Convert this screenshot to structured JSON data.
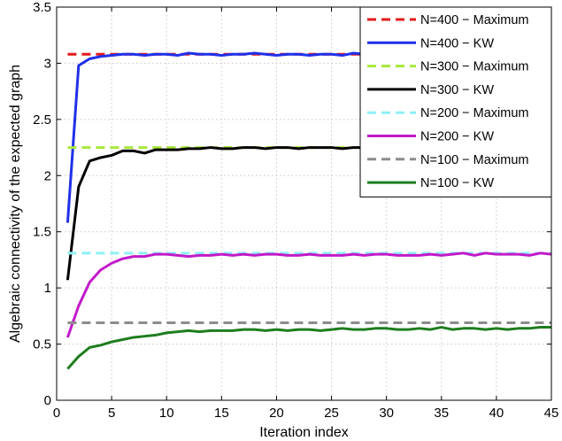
{
  "chart_data": {
    "type": "line",
    "xlabel": "Iteration index",
    "ylabel": "Algebraic connectivity of the expected graph",
    "xlim": [
      0,
      45
    ],
    "ylim": [
      0,
      3.5
    ],
    "x_ticks": [
      0,
      5,
      10,
      15,
      20,
      25,
      30,
      35,
      40,
      45
    ],
    "y_ticks": [
      0,
      0.5,
      1,
      1.5,
      2,
      2.5,
      3,
      3.5
    ],
    "grid": true,
    "legend_position": "top-right",
    "x": [
      1,
      2,
      3,
      4,
      5,
      6,
      7,
      8,
      9,
      10,
      11,
      12,
      13,
      14,
      15,
      16,
      17,
      18,
      19,
      20,
      21,
      22,
      23,
      24,
      25,
      26,
      27,
      28,
      29,
      30,
      31,
      32,
      33,
      34,
      35,
      36,
      37,
      38,
      39,
      40,
      41,
      42,
      43,
      44,
      45
    ],
    "series": [
      {
        "name": "N=400 − Maximum",
        "color": "#e41a1c",
        "dashed": true,
        "values": [
          3.08,
          3.08,
          3.08,
          3.08,
          3.08,
          3.08,
          3.08,
          3.08,
          3.08,
          3.08,
          3.08,
          3.08,
          3.08,
          3.08,
          3.08,
          3.08,
          3.08,
          3.08,
          3.08,
          3.08,
          3.08,
          3.08,
          3.08,
          3.08,
          3.08,
          3.08,
          3.08,
          3.08,
          3.08,
          3.08,
          3.08,
          3.08,
          3.08,
          3.08,
          3.08,
          3.08,
          3.08,
          3.08,
          3.08,
          3.08,
          3.08,
          3.08,
          3.08,
          3.08,
          3.08
        ]
      },
      {
        "name": "N=400 − KW",
        "color": "#1f30e8",
        "dashed": false,
        "values": [
          1.58,
          2.98,
          3.04,
          3.06,
          3.07,
          3.08,
          3.08,
          3.07,
          3.08,
          3.08,
          3.07,
          3.09,
          3.08,
          3.08,
          3.07,
          3.08,
          3.08,
          3.09,
          3.08,
          3.07,
          3.08,
          3.08,
          3.07,
          3.08,
          3.08,
          3.07,
          3.09,
          3.08,
          3.08,
          3.08,
          3.07,
          3.08,
          3.08,
          3.08,
          3.08,
          3.07,
          3.09,
          3.08,
          3.08,
          3.08,
          3.08,
          3.07,
          3.08,
          3.09,
          3.08
        ]
      },
      {
        "name": "N=300 − Maximum",
        "color": "#a8e83a",
        "dashed": true,
        "values": [
          2.25,
          2.25,
          2.25,
          2.25,
          2.25,
          2.25,
          2.25,
          2.25,
          2.25,
          2.25,
          2.25,
          2.25,
          2.25,
          2.25,
          2.25,
          2.25,
          2.25,
          2.25,
          2.25,
          2.25,
          2.25,
          2.25,
          2.25,
          2.25,
          2.25,
          2.25,
          2.25,
          2.25,
          2.25,
          2.25,
          2.25,
          2.25,
          2.25,
          2.25,
          2.25,
          2.25,
          2.25,
          2.25,
          2.25,
          2.25,
          2.25,
          2.25,
          2.25,
          2.25,
          2.25
        ]
      },
      {
        "name": "N=300 − KW",
        "color": "#000000",
        "dashed": false,
        "values": [
          1.07,
          1.9,
          2.13,
          2.16,
          2.18,
          2.22,
          2.22,
          2.2,
          2.23,
          2.23,
          2.23,
          2.24,
          2.24,
          2.25,
          2.24,
          2.24,
          2.25,
          2.25,
          2.24,
          2.25,
          2.25,
          2.24,
          2.25,
          2.25,
          2.25,
          2.24,
          2.25,
          2.25,
          2.25,
          2.25,
          2.25,
          2.25,
          2.25,
          2.25,
          2.25,
          2.25,
          2.25,
          2.25,
          2.25,
          2.25,
          2.25,
          2.25,
          2.25,
          2.25,
          2.25
        ]
      },
      {
        "name": "N=200 − Maximum",
        "color": "#8ef0f5",
        "dashed": true,
        "values": [
          1.31,
          1.31,
          1.31,
          1.31,
          1.31,
          1.31,
          1.31,
          1.31,
          1.31,
          1.31,
          1.31,
          1.31,
          1.31,
          1.31,
          1.31,
          1.31,
          1.31,
          1.31,
          1.31,
          1.31,
          1.31,
          1.31,
          1.31,
          1.31,
          1.31,
          1.31,
          1.31,
          1.31,
          1.31,
          1.31,
          1.31,
          1.31,
          1.31,
          1.31,
          1.31,
          1.31,
          1.31,
          1.31,
          1.31,
          1.31,
          1.31,
          1.31,
          1.31,
          1.31,
          1.31
        ]
      },
      {
        "name": "N=200 − KW",
        "color": "#c21ac9",
        "dashed": false,
        "values": [
          0.56,
          0.84,
          1.05,
          1.16,
          1.22,
          1.26,
          1.28,
          1.28,
          1.3,
          1.3,
          1.29,
          1.28,
          1.29,
          1.29,
          1.3,
          1.29,
          1.3,
          1.29,
          1.3,
          1.3,
          1.29,
          1.29,
          1.3,
          1.29,
          1.29,
          1.29,
          1.3,
          1.29,
          1.3,
          1.3,
          1.29,
          1.29,
          1.29,
          1.3,
          1.29,
          1.3,
          1.31,
          1.29,
          1.31,
          1.3,
          1.3,
          1.3,
          1.29,
          1.31,
          1.3
        ]
      },
      {
        "name": "N=100 − Maximum",
        "color": "#8c8c8c",
        "dashed": true,
        "values": [
          0.69,
          0.69,
          0.69,
          0.69,
          0.69,
          0.69,
          0.69,
          0.69,
          0.69,
          0.69,
          0.69,
          0.69,
          0.69,
          0.69,
          0.69,
          0.69,
          0.69,
          0.69,
          0.69,
          0.69,
          0.69,
          0.69,
          0.69,
          0.69,
          0.69,
          0.69,
          0.69,
          0.69,
          0.69,
          0.69,
          0.69,
          0.69,
          0.69,
          0.69,
          0.69,
          0.69,
          0.69,
          0.69,
          0.69,
          0.69,
          0.69,
          0.69,
          0.69,
          0.69,
          0.69
        ]
      },
      {
        "name": "N=100 − KW",
        "color": "#1e7d1e",
        "dashed": false,
        "values": [
          0.28,
          0.39,
          0.47,
          0.49,
          0.52,
          0.54,
          0.56,
          0.57,
          0.58,
          0.6,
          0.61,
          0.62,
          0.61,
          0.62,
          0.62,
          0.62,
          0.63,
          0.63,
          0.62,
          0.63,
          0.62,
          0.63,
          0.63,
          0.62,
          0.63,
          0.64,
          0.63,
          0.63,
          0.64,
          0.64,
          0.63,
          0.63,
          0.64,
          0.63,
          0.65,
          0.63,
          0.64,
          0.64,
          0.63,
          0.64,
          0.63,
          0.64,
          0.64,
          0.65,
          0.65
        ]
      }
    ]
  }
}
